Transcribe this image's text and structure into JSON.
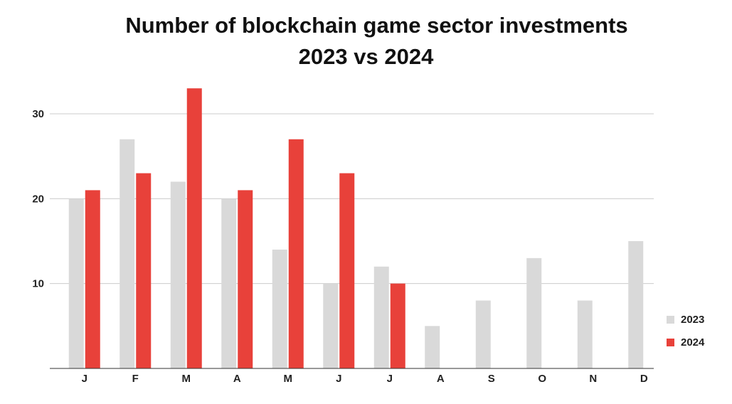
{
  "title_line1": "Number of blockchain game sector investments",
  "title_line2": "2023 vs 2024",
  "chart_data": {
    "type": "bar",
    "title": "Number of blockchain game sector investments 2023 vs 2024",
    "categories": [
      "J",
      "F",
      "M",
      "A",
      "M",
      "J",
      "J",
      "A",
      "S",
      "O",
      "N",
      "D"
    ],
    "series": [
      {
        "name": "2023",
        "color": "#d9d9d9",
        "values": [
          20,
          27,
          22,
          20,
          14,
          10,
          12,
          5,
          8,
          13,
          8,
          15
        ]
      },
      {
        "name": "2024",
        "color": "#e8413a",
        "values": [
          21,
          23,
          33,
          21,
          27,
          23,
          10,
          null,
          null,
          null,
          null,
          null
        ]
      }
    ],
    "yticks": [
      10,
      20,
      30
    ],
    "ylim": [
      0,
      34
    ],
    "grid": true,
    "legend": "right"
  }
}
